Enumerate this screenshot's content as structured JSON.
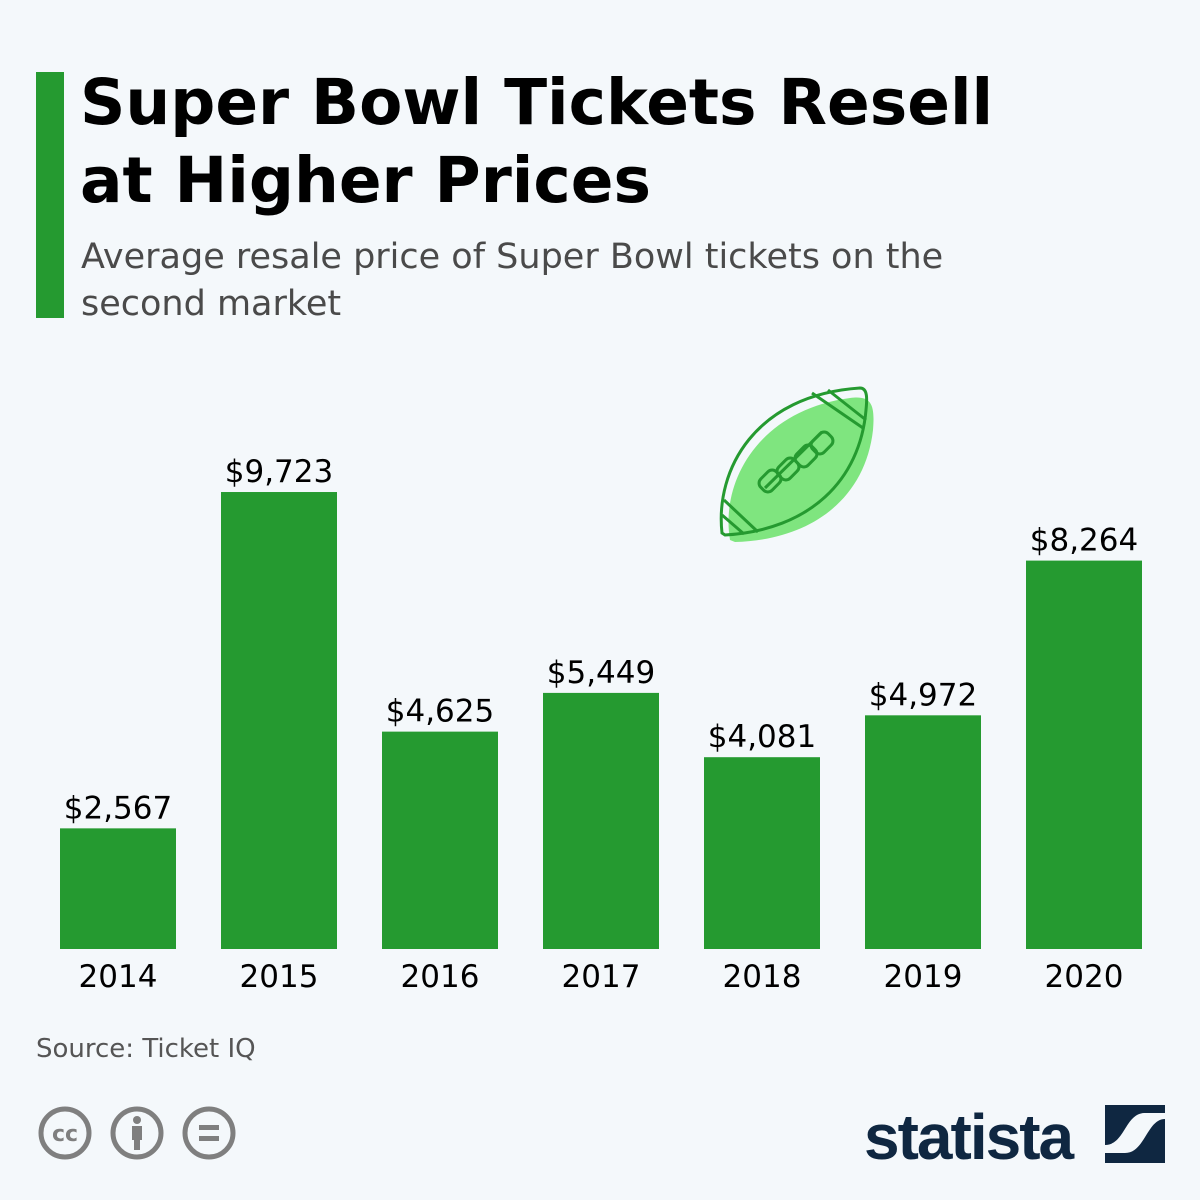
{
  "header": {
    "title": "Super Bowl Tickets Resell at Higher Prices",
    "subtitle": "Average resale price of Super Bowl tickets on the second market"
  },
  "chart_data": {
    "type": "bar",
    "categories": [
      "2014",
      "2015",
      "2016",
      "2017",
      "2018",
      "2019",
      "2020"
    ],
    "values": [
      2567,
      9723,
      4625,
      5449,
      4081,
      4972,
      8264
    ],
    "data_labels": [
      "$2,567",
      "$9,723",
      "$4,625",
      "$5,449",
      "$4,081",
      "$4,972",
      "$8,264"
    ],
    "title": "Super Bowl Tickets Resell at Higher Prices",
    "xlabel": "",
    "ylabel": "",
    "ylim": [
      0,
      10000
    ],
    "grid": false,
    "bar_color": "#259a30"
  },
  "footer": {
    "source": "Source: Ticket IQ",
    "brand": "statista",
    "icons": [
      "cc-icon",
      "attribution-icon",
      "no-derivatives-icon"
    ]
  },
  "colors": {
    "accent": "#259a30",
    "football_fill": "#7fe57f",
    "brand": "#0f2741"
  }
}
